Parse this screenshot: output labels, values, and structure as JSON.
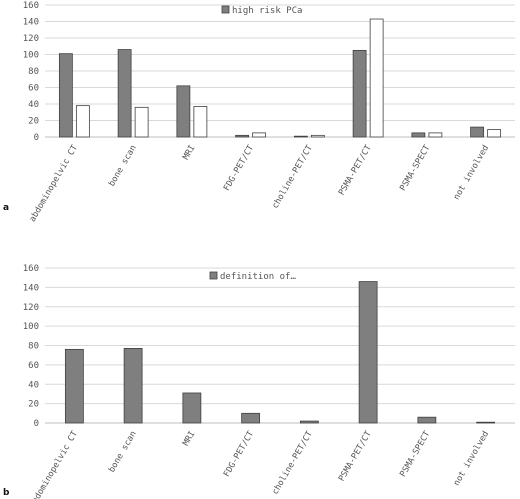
{
  "chart_data": [
    {
      "type": "bar",
      "panel_label": "a",
      "categories": [
        "abdominopelvic CT",
        "bone scan",
        "MRI",
        "FDG-PET/CT",
        "choline-PET/CT",
        "PSMA-PET/CT",
        "PSMA-SPECT",
        "not involved"
      ],
      "series": [
        {
          "name": "high risk PCa",
          "values": [
            101,
            106,
            62,
            2,
            1,
            105,
            5,
            12
          ],
          "color": "#7f7f7f"
        },
        {
          "values": [
            38,
            36,
            37,
            5,
            2,
            143,
            5,
            9
          ],
          "color": "#ffffff"
        }
      ],
      "ylim": [
        0,
        160
      ],
      "yticks": [
        0,
        20,
        40,
        60,
        80,
        100,
        120,
        140,
        160
      ],
      "grid": true,
      "legend": "top-center"
    },
    {
      "type": "bar",
      "panel_label": "b",
      "categories": [
        "abdominopelvic CT",
        "bone scan",
        "MRI",
        "FDG-PET/CT",
        "choline-PET/CT",
        "PSMA-PET/CT",
        "PSMA-SPECT",
        "not involved"
      ],
      "series": [
        {
          "name": "definition of…",
          "values": [
            76,
            77,
            31,
            10,
            2,
            146,
            6,
            0
          ],
          "color": "#7f7f7f"
        }
      ],
      "ylim": [
        0,
        160
      ],
      "yticks": [
        0,
        20,
        40,
        60,
        80,
        100,
        120,
        140,
        160
      ],
      "grid": true,
      "legend": "top-center"
    }
  ]
}
